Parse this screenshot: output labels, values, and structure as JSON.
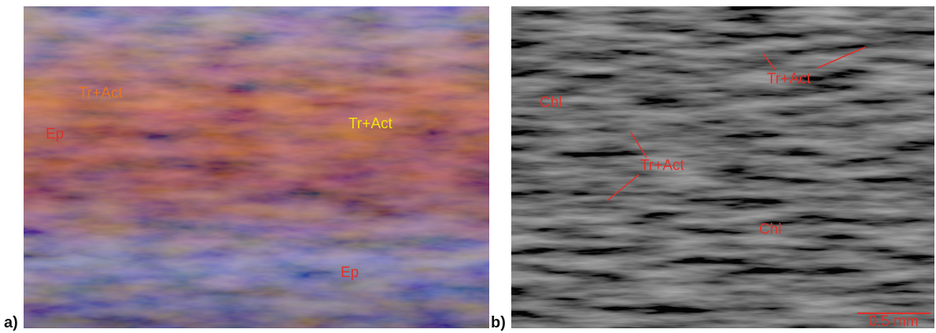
{
  "panels": [
    {
      "letter": "a)",
      "labels": [
        "Tr+Act",
        "Ep",
        "Tr+Act",
        "Ep"
      ]
    },
    {
      "letter": "b)",
      "labels": [
        "Chl",
        "Tr+Act",
        "Tr+Act",
        "Chl"
      ],
      "scale_bar": "0.5 mm"
    }
  ]
}
